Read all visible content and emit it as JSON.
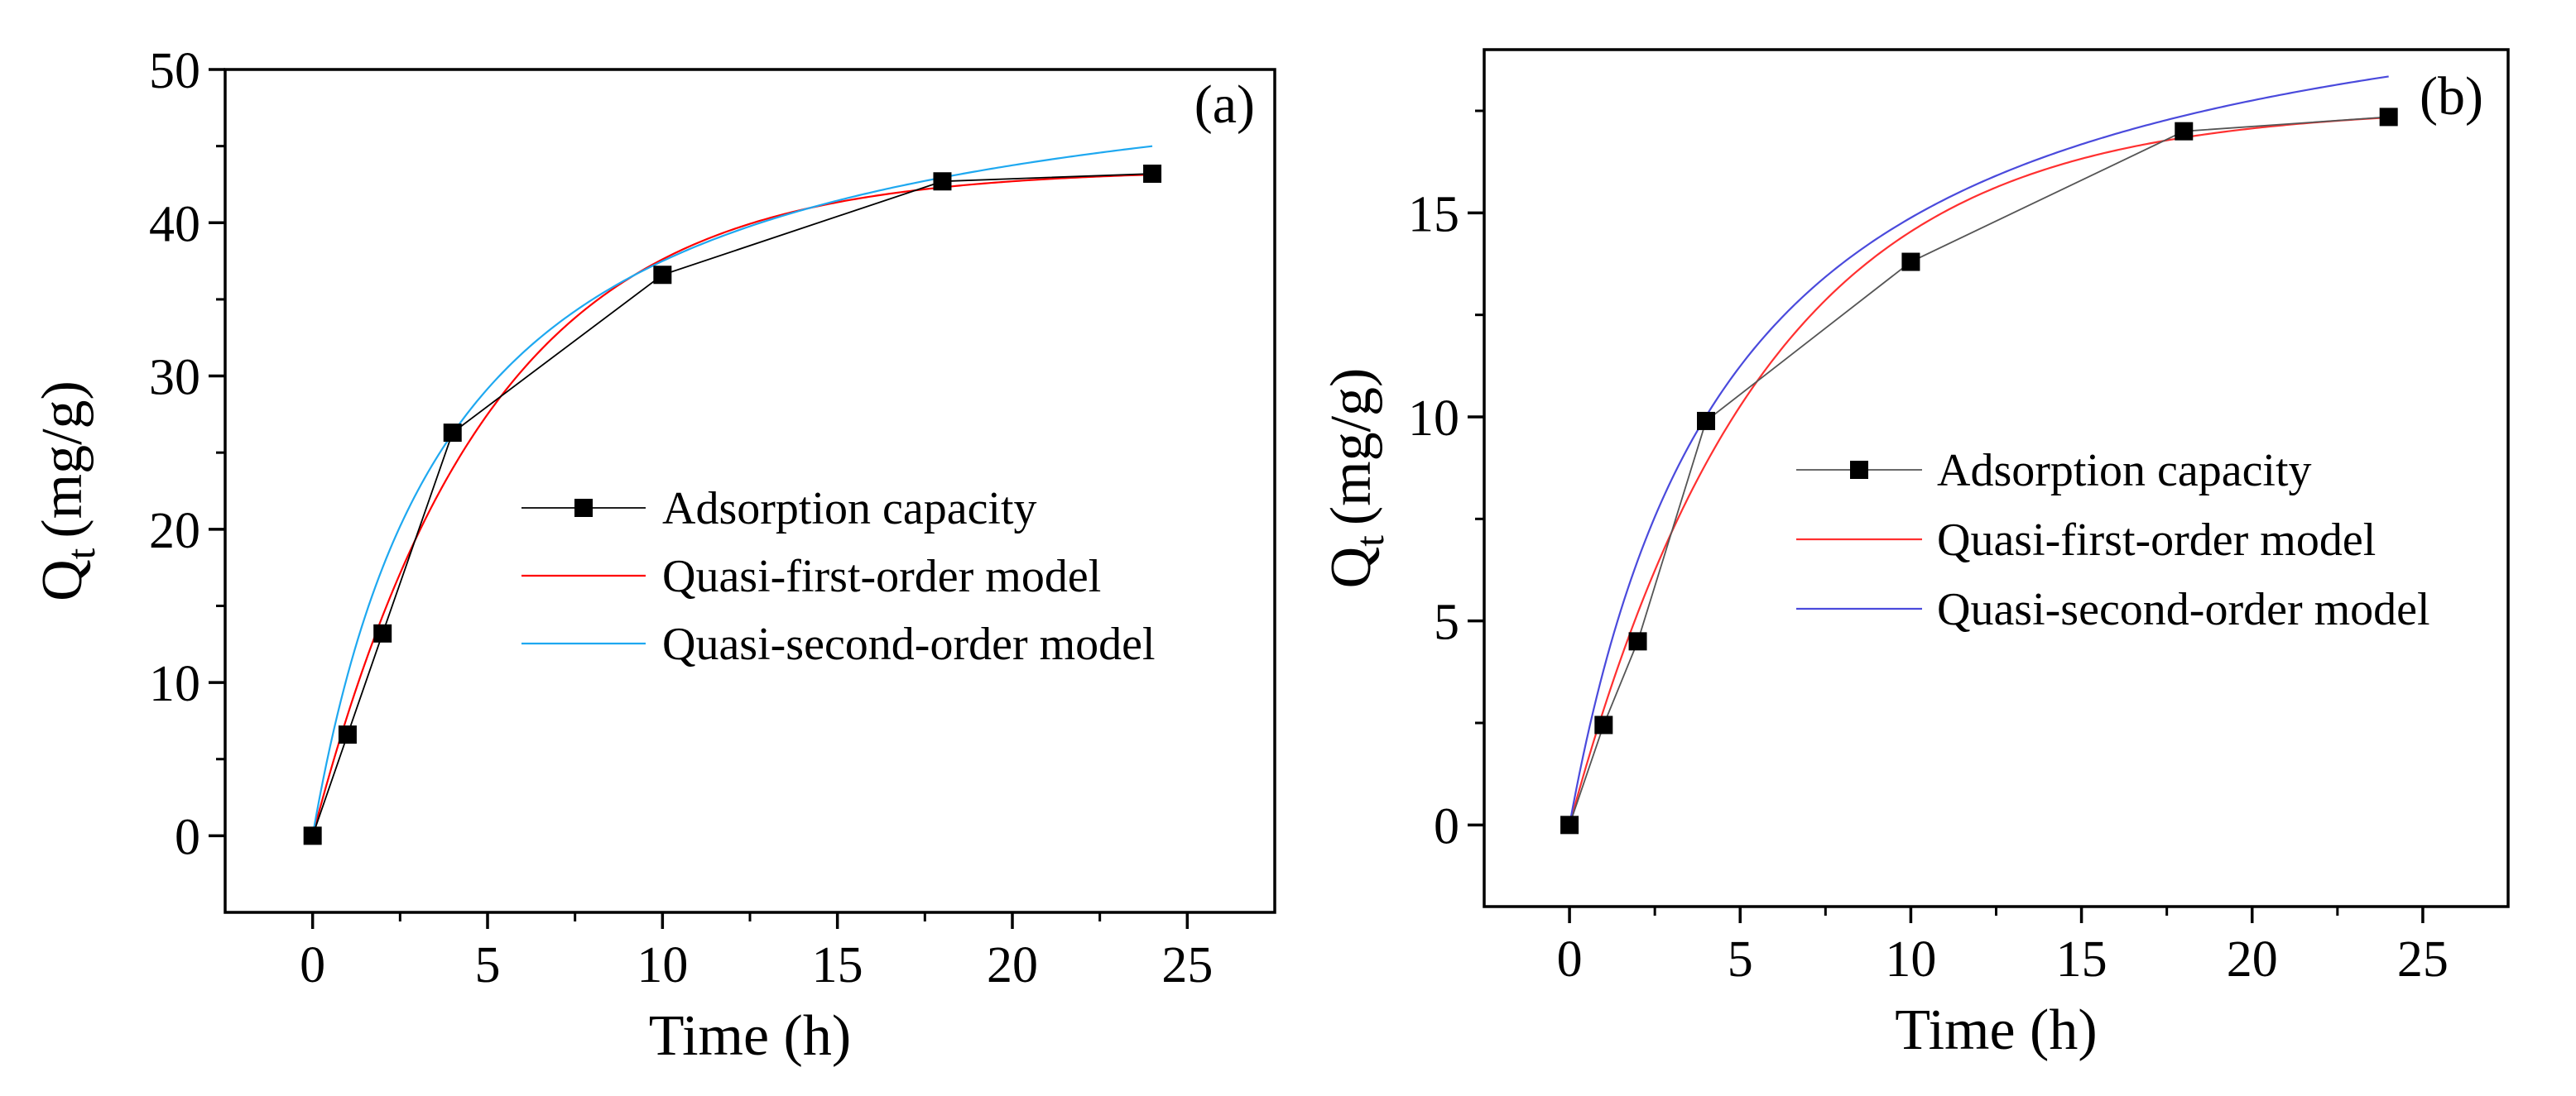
{
  "chart_data": [
    {
      "type": "line",
      "panel_label": "(a)",
      "xlabel": "Time (h)",
      "ylabel": "Q",
      "ylabel_sub": "t",
      "ylabel_unit": "(mg/g)",
      "xlim": [
        -2.5,
        27.5
      ],
      "ylim": [
        -5,
        50
      ],
      "xticks": [
        0,
        5,
        10,
        15,
        20,
        25
      ],
      "yticks": [
        0,
        10,
        20,
        30,
        40,
        50
      ],
      "xtick_labels": [
        "0",
        "5",
        "10",
        "15",
        "20",
        "25"
      ],
      "ytick_labels": [
        "0",
        "10",
        "20",
        "30",
        "40",
        "50"
      ],
      "legend_position": "center-right",
      "series": [
        {
          "name": "Adsorption capacity",
          "kind": "markers-line",
          "color": "#000000",
          "x": [
            0,
            1,
            2,
            4,
            10,
            18,
            24
          ],
          "y": [
            0,
            6.6,
            13.2,
            26.3,
            36.6,
            42.7,
            43.2
          ]
        },
        {
          "name": "Quasi-first-order model",
          "kind": "curve",
          "color": "#ff0000",
          "model": "pfo",
          "qe": 43.5,
          "k": 0.2,
          "x_range": [
            0,
            24
          ]
        },
        {
          "name": "Quasi-second-order model",
          "kind": "curve",
          "color": "#1ea8f0",
          "model": "pso",
          "qe": 52.5,
          "k": 0.00476,
          "x_range": [
            0,
            24
          ]
        }
      ]
    },
    {
      "type": "line",
      "panel_label": "(b)",
      "xlabel": "Time (h)",
      "ylabel": "Q",
      "ylabel_sub": "t",
      "ylabel_unit": "(mg/g)",
      "xlim": [
        -2.5,
        27.5
      ],
      "ylim": [
        -2,
        19
      ],
      "xticks": [
        0,
        5,
        10,
        15,
        20,
        25
      ],
      "yticks": [
        0,
        5,
        10,
        15
      ],
      "xtick_labels": [
        "0",
        "5",
        "10",
        "15",
        "20",
        "25"
      ],
      "ytick_labels": [
        "0",
        "5",
        "10",
        "15"
      ],
      "legend_position": "center-right",
      "series": [
        {
          "name": "Adsorption capacity",
          "kind": "markers-line",
          "color": "#555555",
          "x": [
            0,
            1,
            2,
            4,
            10,
            18,
            24
          ],
          "y": [
            0,
            2.45,
            4.5,
            9.9,
            13.8,
            17.0,
            17.35
          ]
        },
        {
          "name": "Quasi-first-order model",
          "kind": "curve",
          "color": "#ff3030",
          "model": "pfo",
          "qe": 17.6,
          "k": 0.175,
          "x_range": [
            0,
            24
          ]
        },
        {
          "name": "Quasi-second-order model",
          "kind": "curve",
          "color": "#4a4adc",
          "model": "pso",
          "qe": 22.0,
          "k": 0.0095,
          "x_range": [
            0,
            24
          ]
        }
      ]
    }
  ]
}
